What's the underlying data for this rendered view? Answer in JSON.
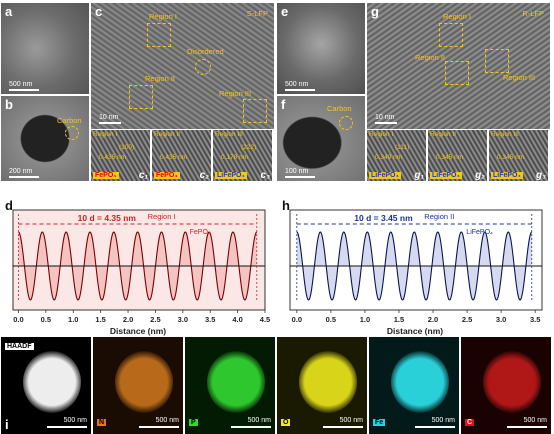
{
  "panel_labels": {
    "a": "a",
    "b": "b",
    "c": "c",
    "d": "d",
    "e": "e",
    "f": "f",
    "g": "g",
    "h": "h",
    "i": "i"
  },
  "scale_bars": {
    "a": "500 nm",
    "b": "200 nm",
    "c": "10 nm",
    "e": "500 nm",
    "f": "100 nm",
    "g": "10 nm",
    "map": "500 nm"
  },
  "panel_b": {
    "carbon": "Carbon"
  },
  "panel_f": {
    "carbon": "Carbon"
  },
  "panel_c": {
    "corner": "S-LFP",
    "region1": "Region I",
    "region2": "Region II",
    "region3": "Region III",
    "disordered": "Disordered"
  },
  "panel_g": {
    "corner": "R-LFP",
    "region1": "Region I",
    "region2": "Region II",
    "region3": "Region III"
  },
  "insets_c": [
    {
      "title": "Region I",
      "hkl": "(100)",
      "d": "0.435 nm",
      "phase": "FePO₄",
      "sub": "c₁"
    },
    {
      "title": "Region II",
      "hkl": "",
      "d": "0.435 nm",
      "phase": "FePO₄",
      "sub": "c₂"
    },
    {
      "title": "Region III",
      "hkl": "(222)",
      "d": "0.178 nm",
      "phase": "LiFePO₄",
      "sub": "c₃"
    }
  ],
  "insets_g": [
    {
      "title": "Region I",
      "hkl": "(111)",
      "d": "0.349 nm",
      "phase": "LiFePO₄",
      "sub": "g₁"
    },
    {
      "title": "Region II",
      "hkl": "",
      "d": "0.345 nm",
      "phase": "LiFePO₄",
      "sub": "g₂"
    },
    {
      "title": "Region III",
      "hkl": "",
      "d": "0.345 nm",
      "phase": "LiFePO₄",
      "sub": "g₃"
    }
  ],
  "chart_data": [
    {
      "type": "line",
      "panel": "d",
      "region": "Region I",
      "phase": "FePO₄",
      "annotation": "10 d = 4.35 nm",
      "xlabel": "Distance (nm)",
      "xlim": [
        -0.1,
        4.5
      ],
      "xticks": [
        "0.0",
        "0.5",
        "1.0",
        "1.5",
        "2.0",
        "2.5",
        "3.0",
        "3.5",
        "4.0",
        "4.5"
      ],
      "periods": 10,
      "span": [
        0.0,
        4.35
      ],
      "color": "#d42020"
    },
    {
      "type": "line",
      "panel": "h",
      "region": "Region II",
      "phase": "LiFePO₄",
      "annotation": "10 d = 3.45 nm",
      "xlabel": "Distance (nm)",
      "xlim": [
        -0.1,
        3.6
      ],
      "xticks": [
        "0.0",
        "0.5",
        "1.0",
        "1.5",
        "2.0",
        "2.5",
        "3.0",
        "3.5"
      ],
      "periods": 10,
      "span": [
        0.0,
        3.45
      ],
      "color": "#1a2fa8"
    }
  ],
  "maps": [
    {
      "tag": "HAADF",
      "bg": "#000000",
      "blob": "#ededed",
      "tagbg": "#ffffff",
      "tagfg": "#000000"
    },
    {
      "tag": "N",
      "bg": "#1a0c02",
      "blob": "#b86a1a",
      "tagbg": "#e07a10",
      "tagfg": "#000000"
    },
    {
      "tag": "P",
      "bg": "#031a03",
      "blob": "#2ec82e",
      "tagbg": "#28e028",
      "tagfg": "#000000"
    },
    {
      "tag": "O",
      "bg": "#1a1a02",
      "blob": "#d8d41a",
      "tagbg": "#f0e820",
      "tagfg": "#000000"
    },
    {
      "tag": "Fe",
      "bg": "#021a1a",
      "blob": "#2ad0d8",
      "tagbg": "#20d8e0",
      "tagfg": "#000000"
    },
    {
      "tag": "C",
      "bg": "#1a0202",
      "blob": "#b01818",
      "tagbg": "#e01010",
      "tagfg": "#ffffff"
    }
  ]
}
